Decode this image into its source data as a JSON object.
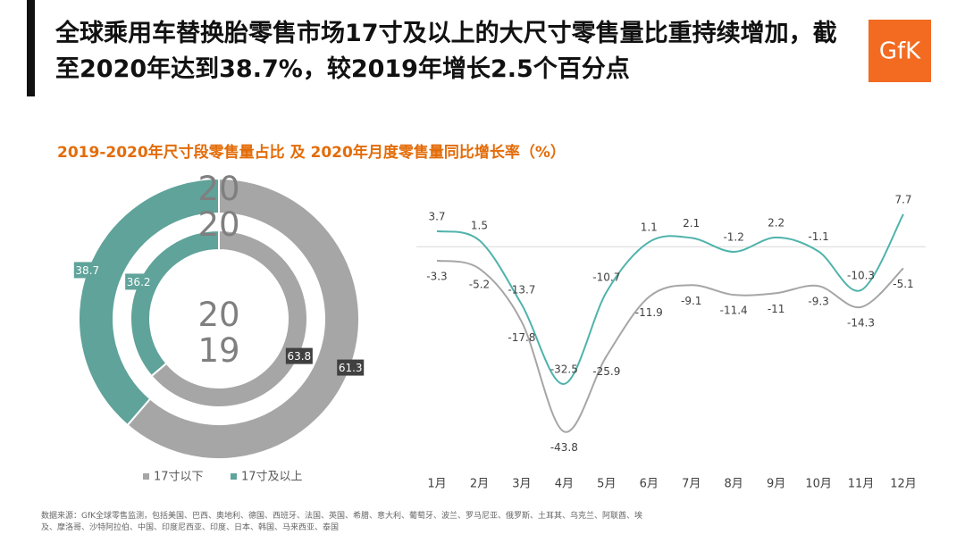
{
  "title": "全球乘用车替换胎零售市场17寸及以上的大尺寸零售量比重持续增加，截至2020年达到38.7%，较2019年增长2.5个百分点",
  "logo": "GfK",
  "subtitle": "2019-2020年尺寸段零售量占比 及 2020年月度零售量同比增长率（%）",
  "source": "数据来源：GfK全球零售监测，包括美国、巴西、奥地利、德国、西班牙、法国、英国、希腊、意大利、葡萄牙、波兰、罗马尼亚、俄罗斯、土耳其、乌克兰、阿联酋、埃及、摩洛哥、沙特阿拉伯、中国、印度尼西亚、印度、日本、韩国、马来西亚、泰国",
  "chart_data": [
    {
      "type": "donut",
      "categories": [
        "17寸以下",
        "17寸及以上"
      ],
      "colors": [
        "#a6a6a6",
        "#5fa39a"
      ],
      "label_colors": [
        "#404040",
        "#5fa39a"
      ],
      "rings": [
        {
          "name": "2020",
          "values": [
            61.3,
            38.7
          ]
        },
        {
          "name": "2019",
          "values": [
            63.8,
            36.2
          ]
        }
      ]
    },
    {
      "type": "line",
      "categories": [
        "1月",
        "2月",
        "3月",
        "4月",
        "5月",
        "6月",
        "7月",
        "8月",
        "9月",
        "10月",
        "11月",
        "12月"
      ],
      "series": [
        {
          "color": "#4fb3ab",
          "values": [
            3.7,
            1.5,
            -13.7,
            -32.5,
            -10.7,
            1.1,
            2.1,
            -1.2,
            2.2,
            -1.1,
            -10.3,
            7.7
          ]
        },
        {
          "color": "#a6a6a6",
          "values": [
            -3.3,
            -5.2,
            -17.8,
            -43.8,
            -25.9,
            -11.9,
            -9.1,
            -11.4,
            -11,
            -9.3,
            -14.3,
            -5.1
          ]
        }
      ],
      "ylim": [
        -45,
        10
      ]
    }
  ]
}
